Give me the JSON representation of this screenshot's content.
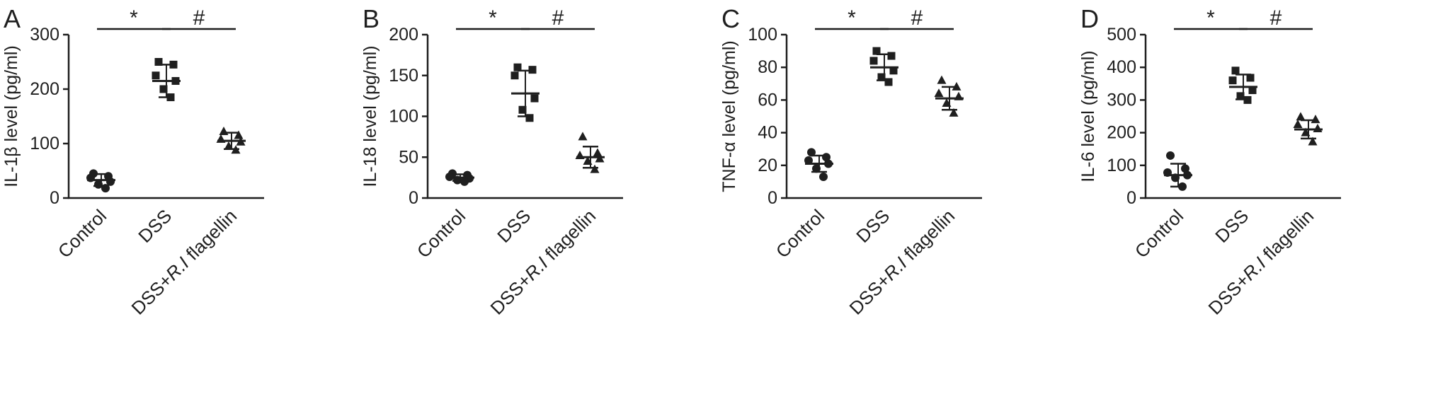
{
  "colors": {
    "ink": "#1f1f1f",
    "background": "#ffffff"
  },
  "category_label_segments": [
    {
      "label": "Control",
      "segments": [
        {
          "text": "Control",
          "italic": false
        }
      ]
    },
    {
      "label": "DSS",
      "segments": [
        {
          "text": "DSS",
          "italic": false
        }
      ]
    },
    {
      "label": "DSS+R.I flagellin",
      "segments": [
        {
          "text": "DSS+",
          "italic": false
        },
        {
          "text": "R.I",
          "italic": true
        },
        {
          "text": " flagellin",
          "italic": false
        }
      ]
    }
  ],
  "chart_data": [
    {
      "type": "scatter",
      "panel": "A",
      "title": "",
      "ylabel": "IL-1β level (pg/ml)",
      "xlabel": "",
      "ylim": [
        0,
        300
      ],
      "yticks": [
        0,
        100,
        200,
        300
      ],
      "grid": false,
      "legend": "none",
      "categories": [
        "Control",
        "DSS",
        "DSS+R.I flagellin"
      ],
      "series": [
        {
          "name": "Control",
          "marker": "circle",
          "values": [
            45,
            40,
            37,
            30,
            25,
            18
          ],
          "mean": 33,
          "sd": 11
        },
        {
          "name": "DSS",
          "marker": "square",
          "values": [
            250,
            245,
            225,
            215,
            200,
            185
          ],
          "mean": 215,
          "sd": 30
        },
        {
          "name": "DSS+R.I flagellin",
          "marker": "triangle",
          "values": [
            122,
            115,
            108,
            103,
            95,
            88
          ],
          "mean": 105,
          "sd": 15
        }
      ],
      "significance": [
        {
          "from": 0,
          "to": 1,
          "label": "*"
        },
        {
          "from": 1,
          "to": 2,
          "label": "#"
        }
      ]
    },
    {
      "type": "scatter",
      "panel": "B",
      "title": "",
      "ylabel": "IL-18 level (pg/ml)",
      "xlabel": "",
      "ylim": [
        0,
        200
      ],
      "yticks": [
        0,
        50,
        100,
        150,
        200
      ],
      "grid": false,
      "legend": "none",
      "categories": [
        "Control",
        "DSS",
        "DSS+R.I flagellin"
      ],
      "series": [
        {
          "name": "Control",
          "marker": "circle",
          "values": [
            30,
            28,
            26,
            24,
            22,
            20
          ],
          "mean": 25,
          "sd": 4
        },
        {
          "name": "DSS",
          "marker": "square",
          "values": [
            160,
            157,
            150,
            122,
            108,
            98
          ],
          "mean": 128,
          "sd": 28
        },
        {
          "name": "DSS+R.I flagellin",
          "marker": "triangle",
          "values": [
            75,
            55,
            52,
            48,
            45,
            35
          ],
          "mean": 50,
          "sd": 13
        }
      ],
      "significance": [
        {
          "from": 0,
          "to": 1,
          "label": "*"
        },
        {
          "from": 1,
          "to": 2,
          "label": "#"
        }
      ]
    },
    {
      "type": "scatter",
      "panel": "C",
      "title": "",
      "ylabel": "TNF-α level (pg/ml)",
      "xlabel": "",
      "ylim": [
        0,
        100
      ],
      "yticks": [
        0,
        20,
        40,
        60,
        80,
        100
      ],
      "grid": false,
      "legend": "none",
      "categories": [
        "Control",
        "DSS",
        "DSS+R.I flagellin"
      ],
      "series": [
        {
          "name": "Control",
          "marker": "circle",
          "values": [
            28,
            25,
            23,
            21,
            18,
            13
          ],
          "mean": 21,
          "sd": 5
        },
        {
          "name": "DSS",
          "marker": "square",
          "values": [
            90,
            87,
            84,
            78,
            74,
            71
          ],
          "mean": 80,
          "sd": 8
        },
        {
          "name": "DSS+R.I flagellin",
          "marker": "triangle",
          "values": [
            72,
            68,
            64,
            62,
            58,
            52
          ],
          "mean": 61,
          "sd": 7
        }
      ],
      "significance": [
        {
          "from": 0,
          "to": 1,
          "label": "*"
        },
        {
          "from": 1,
          "to": 2,
          "label": "#"
        }
      ]
    },
    {
      "type": "scatter",
      "panel": "D",
      "title": "",
      "ylabel": "IL-6 level (pg/ml)",
      "xlabel": "",
      "ylim": [
        0,
        500
      ],
      "yticks": [
        0,
        100,
        200,
        300,
        400,
        500
      ],
      "grid": false,
      "legend": "none",
      "categories": [
        "Control",
        "DSS",
        "DSS+R.I flagellin"
      ],
      "series": [
        {
          "name": "Control",
          "marker": "circle",
          "values": [
            130,
            90,
            78,
            70,
            62,
            35
          ],
          "mean": 70,
          "sd": 35
        },
        {
          "name": "DSS",
          "marker": "square",
          "values": [
            390,
            368,
            360,
            330,
            312,
            300
          ],
          "mean": 340,
          "sd": 38
        },
        {
          "name": "DSS+R.I flagellin",
          "marker": "triangle",
          "values": [
            248,
            240,
            225,
            212,
            200,
            172
          ],
          "mean": 210,
          "sd": 28
        }
      ],
      "significance": [
        {
          "from": 0,
          "to": 1,
          "label": "*"
        },
        {
          "from": 1,
          "to": 2,
          "label": "#"
        }
      ]
    }
  ]
}
